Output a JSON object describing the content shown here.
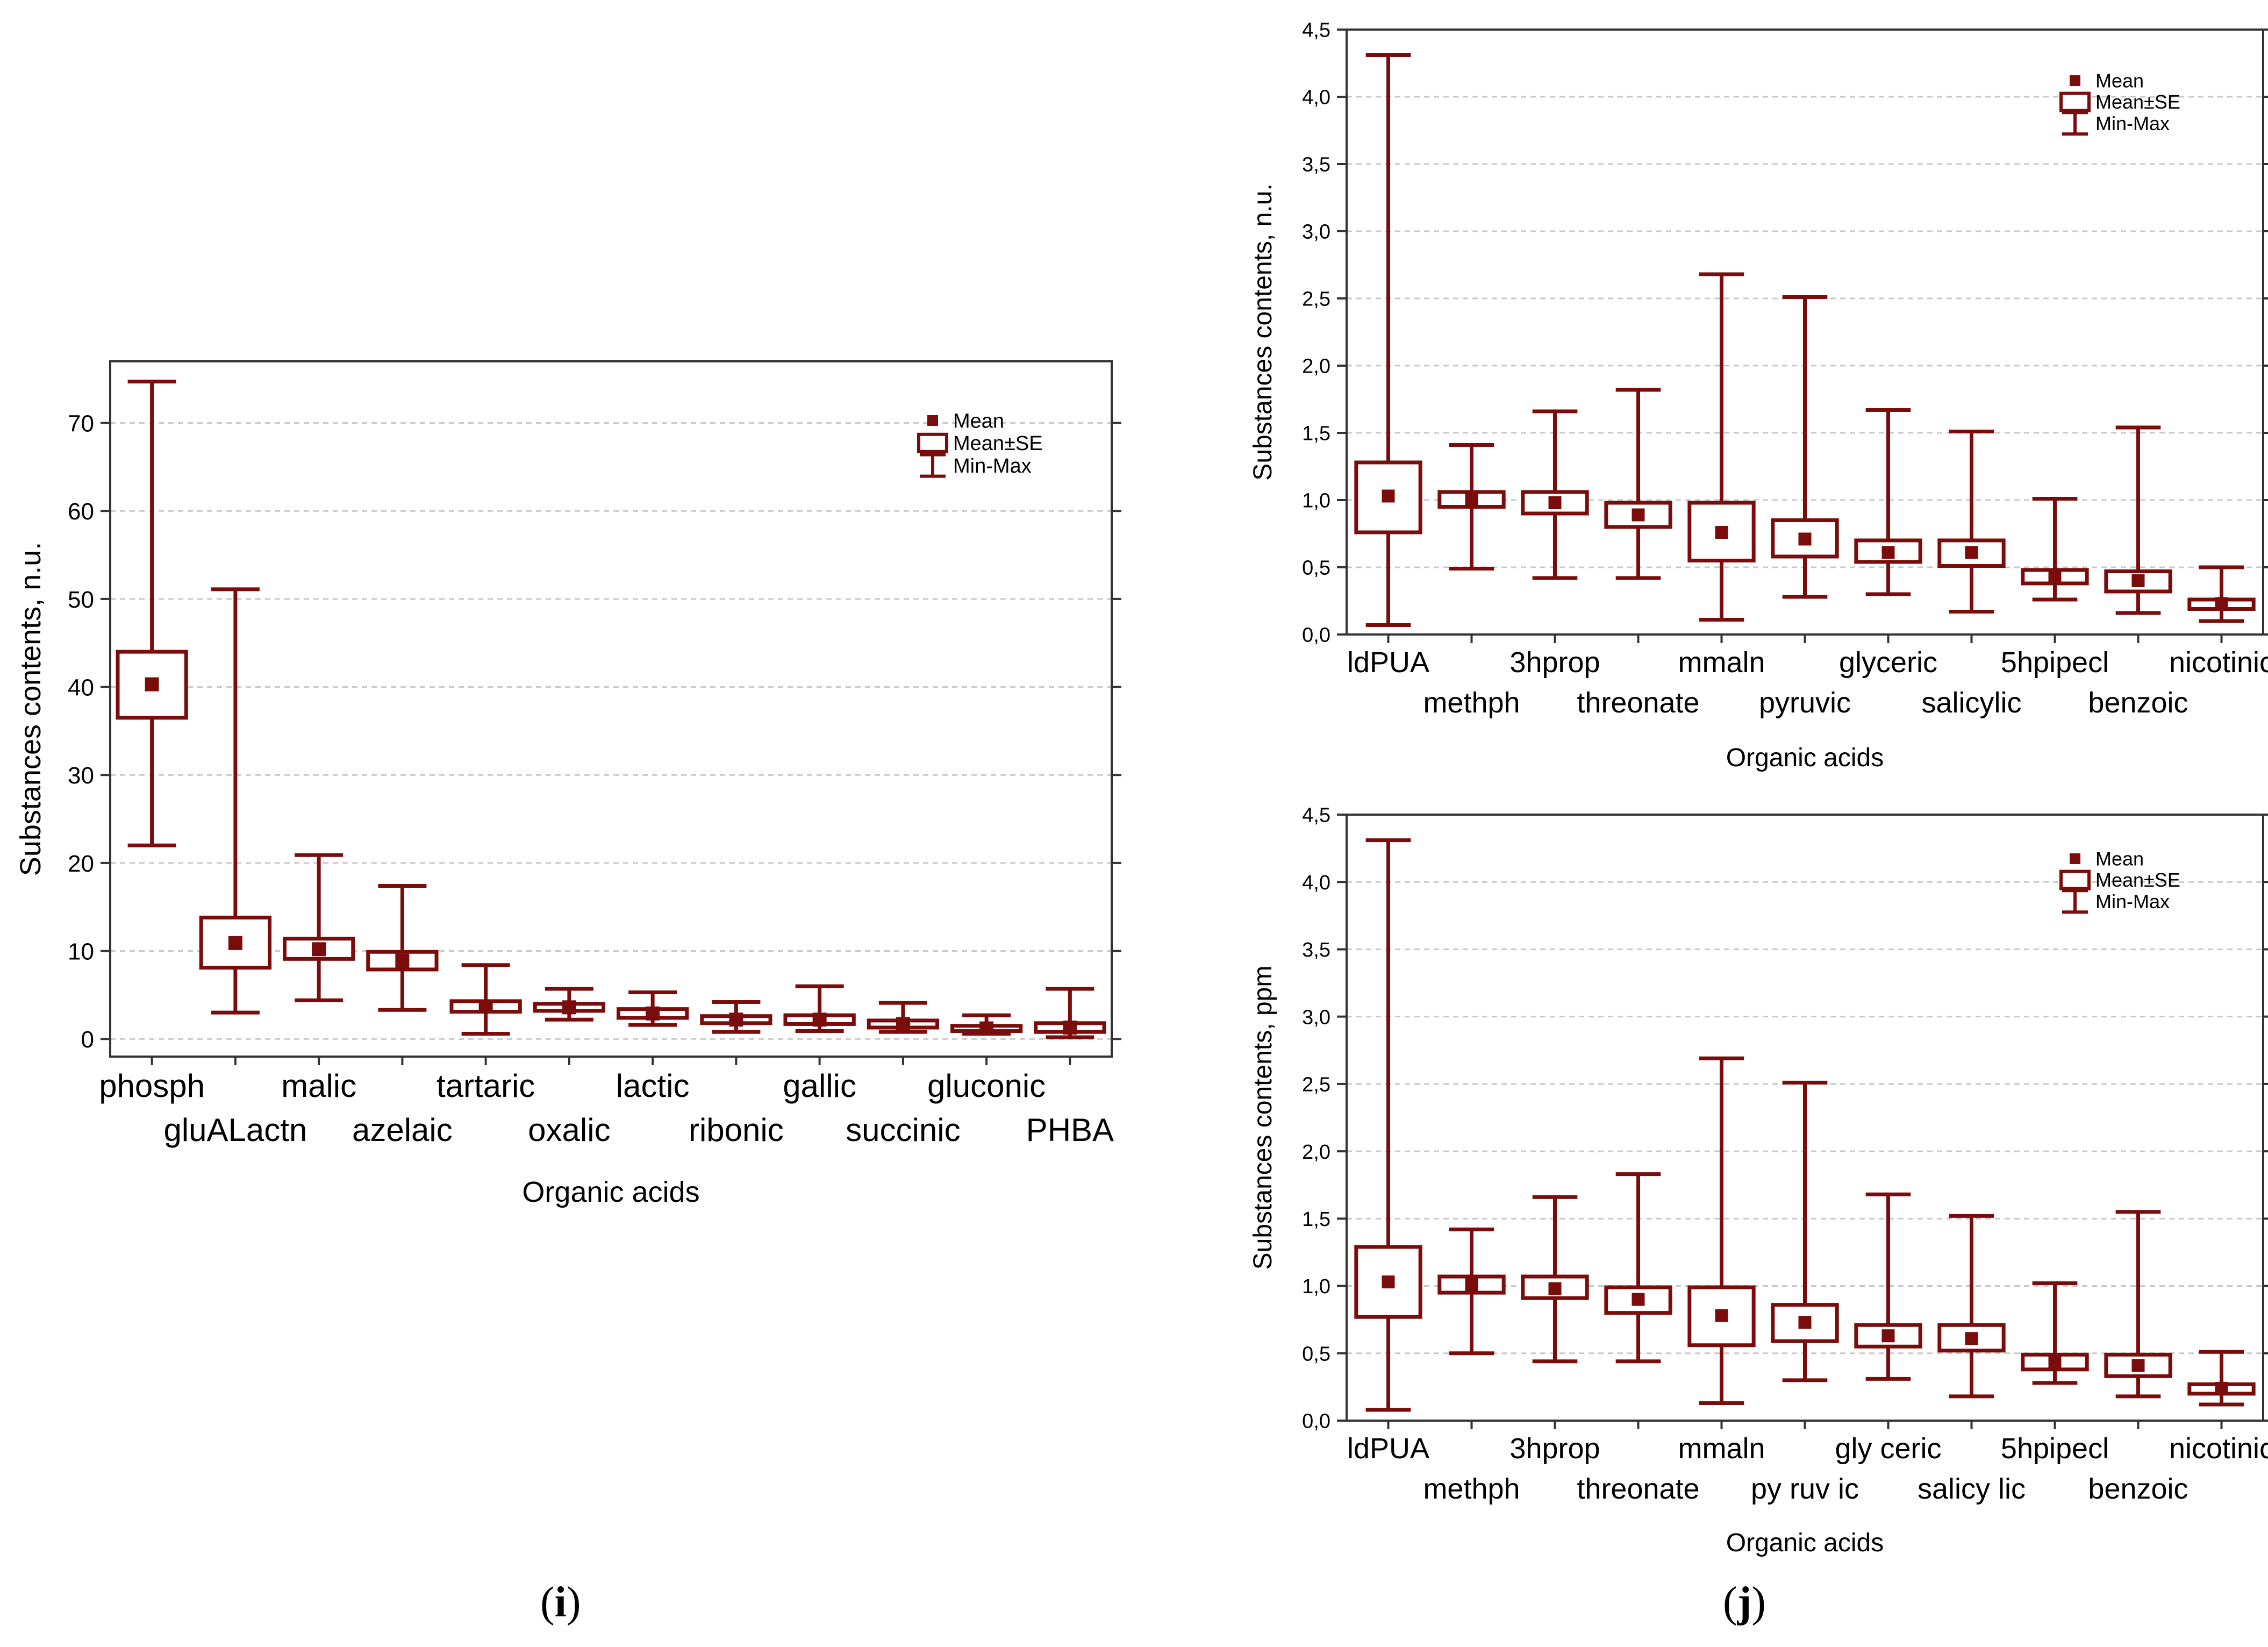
{
  "colors": {
    "series": "#7a0c0c",
    "axis": "#333333",
    "grid": "#c8c8c8",
    "text": "#000000"
  },
  "captions": {
    "left": {
      "open": "(",
      "letter": "i",
      "close": ")"
    },
    "right": {
      "open": "(",
      "letter": "j",
      "close": ")"
    }
  },
  "legend": {
    "mean": "Mean",
    "se": "Mean±SE",
    "minmax": "Min-Max"
  },
  "chart_data": [
    {
      "id": "i",
      "type": "box",
      "title": "",
      "xlabel": "Organic acids",
      "ylabel": "Substances contents, n.u.",
      "ylim": [
        -2,
        77
      ],
      "yticks": [
        0,
        10,
        20,
        30,
        40,
        50,
        60,
        70
      ],
      "ytick_labels": [
        "0",
        "10",
        "20",
        "30",
        "40",
        "50",
        "60",
        "70"
      ],
      "grid": true,
      "legend_position": "top-right",
      "categories": [
        "phosph",
        "gluALactn",
        "malic",
        "azelaic",
        "tartaric",
        "oxalic",
        "lactic",
        "ribonic",
        "gallic",
        "succinic",
        "gluconic",
        "PHBA"
      ],
      "mean": [
        40.3,
        10.9,
        10.2,
        8.9,
        3.7,
        3.6,
        2.9,
        2.2,
        2.2,
        1.7,
        1.2,
        1.3
      ],
      "se_low": [
        36.5,
        8.1,
        9.1,
        7.9,
        3.1,
        3.2,
        2.4,
        1.8,
        1.7,
        1.3,
        0.9,
        0.8
      ],
      "se_high": [
        44.0,
        13.8,
        11.4,
        9.9,
        4.3,
        4.0,
        3.4,
        2.6,
        2.7,
        2.1,
        1.5,
        1.8
      ],
      "min": [
        22.0,
        3.0,
        4.4,
        3.3,
        0.6,
        2.2,
        1.6,
        0.8,
        0.9,
        0.8,
        0.6,
        0.2
      ],
      "max": [
        74.7,
        51.1,
        20.9,
        17.4,
        8.4,
        5.7,
        5.3,
        4.2,
        6.0,
        4.1,
        2.7,
        5.7
      ]
    },
    {
      "id": "j-top",
      "type": "box",
      "title": "",
      "xlabel": "Organic acids",
      "ylabel": "Substances contents, n.u.",
      "ylim": [
        0,
        4.5
      ],
      "yticks": [
        0,
        0.5,
        1.0,
        1.5,
        2.0,
        2.5,
        3.0,
        3.5,
        4.0,
        4.5
      ],
      "ytick_labels": [
        "0,0",
        "0,5",
        "1,0",
        "1,5",
        "2,0",
        "2,5",
        "3,0",
        "3,5",
        "4,0",
        "4,5"
      ],
      "grid": true,
      "legend_position": "top-right",
      "categories": [
        "ldPUA",
        "methph",
        "3hprop",
        "threonate",
        "mmaln",
        "pyruvic",
        "glyceric",
        "salicylic",
        "5hpipecl",
        "benzoic",
        "nicotinic"
      ],
      "mean": [
        1.03,
        1.01,
        0.98,
        0.89,
        0.76,
        0.71,
        0.61,
        0.61,
        0.43,
        0.4,
        0.23
      ],
      "se_low": [
        0.76,
        0.95,
        0.9,
        0.8,
        0.55,
        0.58,
        0.54,
        0.51,
        0.38,
        0.32,
        0.19
      ],
      "se_high": [
        1.28,
        1.06,
        1.06,
        0.98,
        0.98,
        0.85,
        0.7,
        0.7,
        0.48,
        0.47,
        0.26
      ],
      "min": [
        0.07,
        0.49,
        0.42,
        0.42,
        0.11,
        0.28,
        0.3,
        0.17,
        0.26,
        0.16,
        0.1
      ],
      "max": [
        4.31,
        1.41,
        1.66,
        1.82,
        2.68,
        2.51,
        1.67,
        1.51,
        1.01,
        1.54,
        0.5
      ]
    },
    {
      "id": "j-bottom",
      "type": "box",
      "title": "",
      "xlabel": "Organic acids",
      "ylabel": "Substances contents, ppm",
      "ylim": [
        0,
        4.5
      ],
      "yticks": [
        0,
        0.5,
        1.0,
        1.5,
        2.0,
        2.5,
        3.0,
        3.5,
        4.0,
        4.5
      ],
      "ytick_labels": [
        "0,0",
        "0,5",
        "1,0",
        "1,5",
        "2,0",
        "2,5",
        "3,0",
        "3,5",
        "4,0",
        "4,5"
      ],
      "grid": true,
      "legend_position": "top-right",
      "categories": [
        "ldPUA",
        "methph",
        "3hprop",
        "threonate",
        "mmaln",
        "py ruv ic",
        "gly ceric",
        "salicy lic",
        "5hpipecl",
        "benzoic",
        "nicotinic"
      ],
      "mean": [
        1.03,
        1.01,
        0.98,
        0.9,
        0.78,
        0.73,
        0.63,
        0.61,
        0.44,
        0.41,
        0.24
      ],
      "se_low": [
        0.77,
        0.95,
        0.91,
        0.8,
        0.56,
        0.59,
        0.55,
        0.52,
        0.38,
        0.33,
        0.2
      ],
      "se_high": [
        1.29,
        1.07,
        1.07,
        0.99,
        0.99,
        0.86,
        0.71,
        0.71,
        0.49,
        0.49,
        0.27
      ],
      "min": [
        0.08,
        0.5,
        0.44,
        0.44,
        0.13,
        0.3,
        0.31,
        0.18,
        0.28,
        0.18,
        0.12
      ],
      "max": [
        4.31,
        1.42,
        1.66,
        1.83,
        2.69,
        2.51,
        1.68,
        1.52,
        1.02,
        1.55,
        0.51
      ]
    }
  ]
}
